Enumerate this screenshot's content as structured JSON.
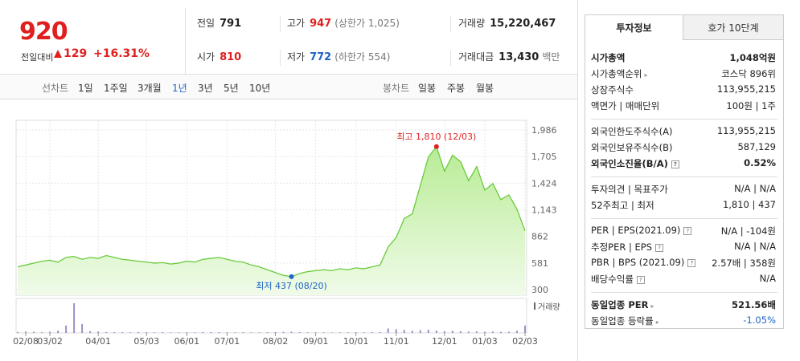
{
  "header": {
    "price": "920",
    "change_label": "전일대비",
    "change": "129",
    "rate": "+16.31%"
  },
  "summary": [
    [
      {
        "label": "전일",
        "value": "791",
        "color": "#222"
      },
      {
        "label": "고가",
        "value": "947",
        "note": "(상한가 1,025)",
        "color": "#e01f1f"
      },
      {
        "label": "거래량",
        "value": "15,220,467",
        "color": "#222"
      }
    ],
    [
      {
        "label": "시가",
        "value": "810",
        "color": "#e01f1f"
      },
      {
        "label": "저가",
        "value": "772",
        "note": "(하한가 554)",
        "color": "#1f63c6"
      },
      {
        "label": "거래대금",
        "value": "13,430",
        "note": "백만",
        "color": "#222"
      }
    ]
  ],
  "nav": {
    "line_chart": "선차트",
    "periods": [
      "1일",
      "1주일",
      "3개월",
      "1년",
      "3년",
      "5년",
      "10년"
    ],
    "active_period": 3,
    "candle_chart": "봉차트",
    "candles": [
      "일봉",
      "주봉",
      "월봉"
    ]
  },
  "chart_data": {
    "type": "line",
    "series": [
      {
        "color": "#6acb3c",
        "values": [
          540,
          560,
          580,
          600,
          610,
          590,
          640,
          650,
          620,
          640,
          630,
          660,
          640,
          620,
          610,
          600,
          590,
          580,
          585,
          570,
          580,
          600,
          590,
          620,
          630,
          640,
          620,
          600,
          590,
          560,
          540,
          510,
          480,
          450,
          437,
          470,
          490,
          500,
          510,
          500,
          520,
          510,
          530,
          520,
          540,
          560,
          750,
          850,
          1050,
          1100,
          1400,
          1700,
          1810,
          1550,
          1720,
          1650,
          1450,
          1600,
          1350,
          1420,
          1250,
          1300,
          1150,
          920
        ]
      }
    ],
    "ylim": [
      300,
      1986
    ],
    "yticks": [
      {
        "value": 300,
        "label": "300"
      },
      {
        "value": 581,
        "label": "581"
      },
      {
        "value": 862,
        "label": "862"
      },
      {
        "value": 1143,
        "label": "1,143"
      },
      {
        "value": 1424,
        "label": "1,424"
      },
      {
        "value": 1705,
        "label": "1,705"
      },
      {
        "value": 1986,
        "label": "1,986"
      }
    ],
    "xticks": [
      {
        "value": 1,
        "label": "02/08"
      },
      {
        "value": 4,
        "label": "03/02"
      },
      {
        "value": 10,
        "label": "04/01"
      },
      {
        "value": 16,
        "label": "05/03"
      },
      {
        "value": 21,
        "label": "06/01"
      },
      {
        "value": 26,
        "label": "07/01"
      },
      {
        "value": 32,
        "label": "08/02"
      },
      {
        "value": 37,
        "label": "09/01"
      },
      {
        "value": 42,
        "label": "10/01"
      },
      {
        "value": 47,
        "label": "11/01"
      },
      {
        "value": 53,
        "label": "12/01"
      },
      {
        "value": 58,
        "label": "01/03"
      },
      {
        "value": 63,
        "label": "02/03"
      }
    ],
    "max_label": "최고 1,810 (12/03)",
    "min_label": "최저 437 (08/20)",
    "grid": true,
    "volume": {
      "label": "거래량",
      "color": "#a08cc8",
      "values": [
        600000,
        900000,
        700000,
        500000,
        800000,
        1500000,
        5000000,
        20000000,
        6000000,
        1200000,
        900000,
        600000,
        500000,
        500000,
        400000,
        600000,
        500000,
        400000,
        500000,
        400000,
        400000,
        500000,
        400000,
        600000,
        500000,
        500000,
        400000,
        400000,
        500000,
        400000,
        400000,
        500000,
        600000,
        700000,
        800000,
        500000,
        400000,
        400000,
        400000,
        300000,
        400000,
        400000,
        500000,
        400000,
        500000,
        600000,
        3000000,
        2500000,
        2000000,
        1500000,
        1800000,
        2200000,
        1600000,
        1200000,
        1400000,
        1100000,
        900000,
        1000000,
        800000,
        900000,
        700000,
        800000,
        1500000,
        5000000
      ]
    }
  },
  "tabs": [
    "투자정보",
    "호가 10단계"
  ],
  "info": [
    [
      {
        "label": "시가총액",
        "value": "1,048억원",
        "bold": true
      },
      {
        "label": "시가총액순위",
        "value": "코스닥 896위",
        "arrow": true
      },
      {
        "label": "상장주식수",
        "value": "113,955,215"
      },
      {
        "label": "액면가 | 매매단위",
        "value": "100원 | 1주"
      }
    ],
    [
      {
        "label": "외국인한도주식수(A)",
        "value": "113,955,215"
      },
      {
        "label": "외국인보유주식수(B)",
        "value": "587,129"
      },
      {
        "label": "외국인소진율(B/A)",
        "value": "0.52%",
        "bold": true,
        "help": true
      }
    ],
    [
      {
        "label": "투자의견 | 목표주가",
        "value": "N/A | N/A"
      },
      {
        "label": "52주최고 | 최저",
        "value": "1,810 | 437"
      }
    ],
    [
      {
        "label": "PER | EPS(2021.09)",
        "value": "N/A | -104원",
        "help": true
      },
      {
        "label": "추정PER | EPS",
        "value": "N/A | N/A",
        "help": true
      },
      {
        "label": "PBR | BPS (2021.09)",
        "value": "2.57배 | 358원",
        "help": true
      },
      {
        "label": "배당수익률",
        "value": "N/A",
        "help": true
      }
    ],
    [
      {
        "label": "동일업종 PER",
        "value": "521.56배",
        "bold": true,
        "arrow": true
      },
      {
        "label": "동일업종 등락률",
        "value": "-1.05%",
        "arrow": true,
        "color": "#1f63c6"
      }
    ]
  ]
}
